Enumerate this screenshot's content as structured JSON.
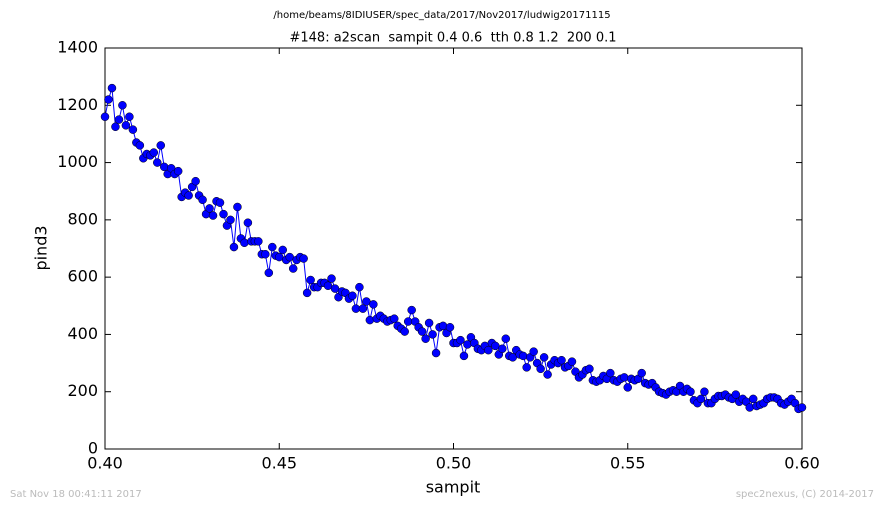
{
  "chart_data": {
    "type": "line",
    "suptitle": "/home/beams/8IDIUSER/spec_data/2017/Nov2017/ludwig20171115",
    "title": "#148: a2scan  sampit 0.4 0.6  tth 0.8 1.2  200 0.1",
    "x_label": "sampit",
    "y_label": "pind3",
    "footer_left": "Sat Nov 18 00:41:11 2017",
    "footer_right": "spec2nexus, (C) 2014-2017",
    "xlim": [
      0.4,
      0.6
    ],
    "ylim": [
      0,
      1400
    ],
    "xticks": [
      {
        "value": 0.4,
        "label": "0.40"
      },
      {
        "value": 0.45,
        "label": "0.45"
      },
      {
        "value": 0.5,
        "label": "0.50"
      },
      {
        "value": 0.55,
        "label": "0.55"
      },
      {
        "value": 0.6,
        "label": "0.60"
      }
    ],
    "yticks": [
      0,
      200,
      400,
      600,
      800,
      1000,
      1200,
      1400
    ],
    "x": [
      0.4,
      0.401,
      0.402,
      0.403,
      0.404,
      0.405,
      0.406,
      0.407,
      0.408,
      0.409,
      0.41,
      0.411,
      0.412,
      0.413,
      0.414,
      0.415,
      0.416,
      0.417,
      0.418,
      0.419,
      0.42,
      0.421,
      0.422,
      0.423,
      0.424,
      0.425,
      0.426,
      0.427,
      0.428,
      0.429,
      0.43,
      0.431,
      0.432,
      0.433,
      0.434,
      0.435,
      0.436,
      0.437,
      0.438,
      0.439,
      0.44,
      0.441,
      0.442,
      0.443,
      0.444,
      0.445,
      0.446,
      0.447,
      0.448,
      0.449,
      0.45,
      0.451,
      0.452,
      0.453,
      0.454,
      0.455,
      0.456,
      0.457,
      0.458,
      0.459,
      0.46,
      0.461,
      0.462,
      0.463,
      0.464,
      0.465,
      0.466,
      0.467,
      0.468,
      0.469,
      0.47,
      0.471,
      0.472,
      0.473,
      0.474,
      0.475,
      0.476,
      0.477,
      0.478,
      0.479,
      0.48,
      0.481,
      0.482,
      0.483,
      0.484,
      0.485,
      0.486,
      0.487,
      0.488,
      0.489,
      0.49,
      0.491,
      0.492,
      0.493,
      0.494,
      0.495,
      0.496,
      0.497,
      0.498,
      0.499,
      0.5,
      0.501,
      0.502,
      0.503,
      0.504,
      0.505,
      0.506,
      0.507,
      0.508,
      0.509,
      0.51,
      0.511,
      0.512,
      0.513,
      0.514,
      0.515,
      0.516,
      0.517,
      0.518,
      0.519,
      0.52,
      0.521,
      0.522,
      0.523,
      0.524,
      0.525,
      0.526,
      0.527,
      0.528,
      0.529,
      0.53,
      0.531,
      0.532,
      0.533,
      0.534,
      0.535,
      0.536,
      0.537,
      0.538,
      0.539,
      0.54,
      0.541,
      0.542,
      0.543,
      0.544,
      0.545,
      0.546,
      0.547,
      0.548,
      0.549,
      0.55,
      0.551,
      0.552,
      0.553,
      0.554,
      0.555,
      0.556,
      0.557,
      0.558,
      0.559,
      0.56,
      0.561,
      0.562,
      0.563,
      0.564,
      0.565,
      0.566,
      0.567,
      0.568,
      0.569,
      0.57,
      0.571,
      0.572,
      0.573,
      0.574,
      0.575,
      0.576,
      0.577,
      0.578,
      0.579,
      0.58,
      0.581,
      0.582,
      0.583,
      0.584,
      0.585,
      0.586,
      0.587,
      0.588,
      0.589,
      0.59,
      0.591,
      0.592,
      0.593,
      0.594,
      0.595,
      0.596,
      0.597,
      0.598,
      0.599,
      0.6
    ],
    "series": [
      {
        "color": "#0000ff",
        "values": [
          1160,
          1220,
          1260,
          1125,
          1150,
          1200,
          1130,
          1160,
          1115,
          1070,
          1060,
          1015,
          1030,
          1025,
          1035,
          1000,
          1060,
          985,
          960,
          980,
          960,
          970,
          880,
          895,
          885,
          915,
          935,
          885,
          870,
          820,
          840,
          815,
          865,
          860,
          820,
          780,
          800,
          705,
          845,
          735,
          720,
          790,
          725,
          725,
          725,
          680,
          680,
          615,
          705,
          675,
          670,
          695,
          660,
          670,
          630,
          660,
          670,
          665,
          545,
          590,
          565,
          565,
          580,
          580,
          570,
          595,
          560,
          530,
          550,
          545,
          525,
          535,
          490,
          565,
          490,
          515,
          450,
          505,
          455,
          465,
          455,
          445,
          450,
          455,
          430,
          420,
          410,
          445,
          485,
          445,
          425,
          410,
          385,
          440,
          400,
          335,
          425,
          430,
          405,
          425,
          370,
          370,
          380,
          325,
          365,
          390,
          370,
          350,
          345,
          360,
          345,
          370,
          360,
          330,
          350,
          385,
          325,
          320,
          345,
          330,
          325,
          285,
          320,
          340,
          300,
          280,
          320,
          260,
          295,
          310,
          300,
          310,
          285,
          290,
          305,
          270,
          250,
          260,
          275,
          280,
          240,
          235,
          240,
          255,
          245,
          265,
          240,
          235,
          245,
          250,
          215,
          245,
          240,
          245,
          265,
          230,
          225,
          230,
          215,
          200,
          195,
          190,
          200,
          205,
          200,
          220,
          200,
          210,
          200,
          170,
          160,
          175,
          200,
          160,
          160,
          175,
          185,
          185,
          190,
          180,
          175,
          190,
          165,
          175,
          165,
          145,
          175,
          150,
          155,
          160,
          175,
          180,
          180,
          175,
          160,
          155,
          165,
          175,
          160,
          140,
          145
        ]
      }
    ]
  }
}
